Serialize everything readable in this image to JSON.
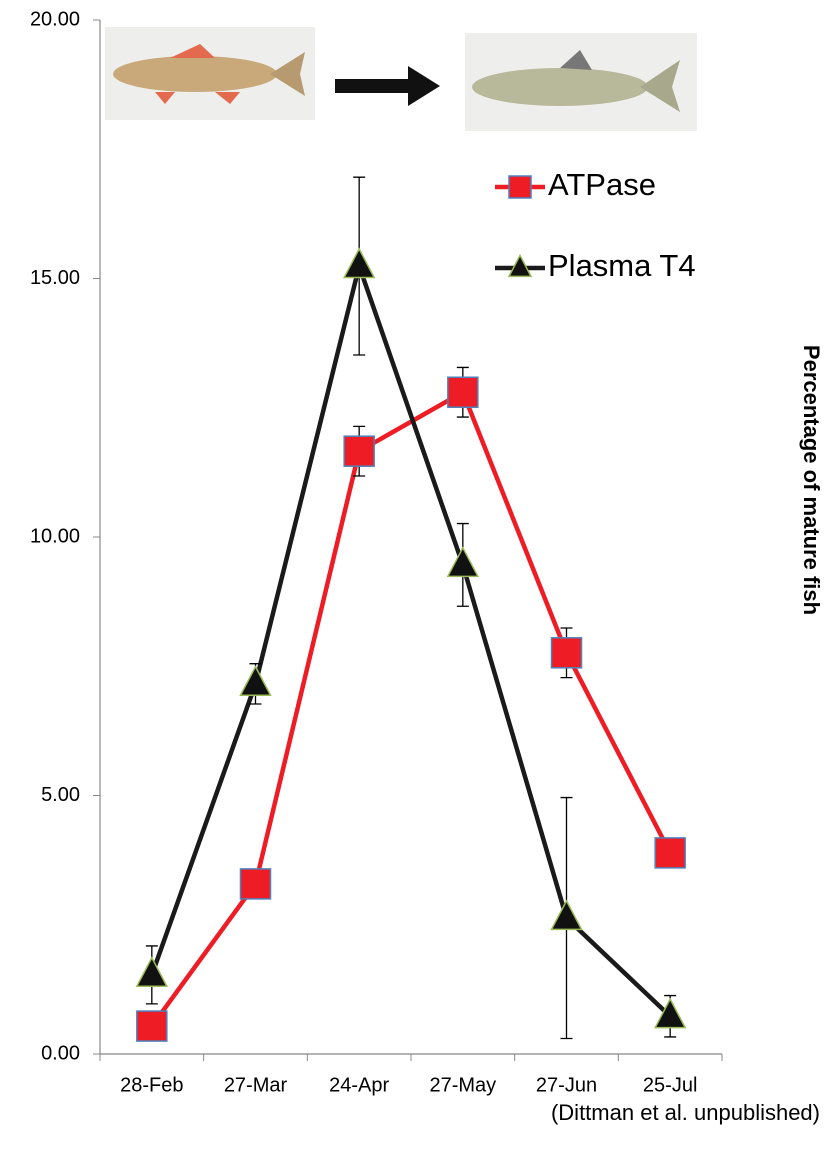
{
  "chart_data": {
    "type": "line",
    "categories": [
      "28-Feb",
      "27-Mar",
      "24-Apr",
      "27-May",
      "27-Jun",
      "25-Jul"
    ],
    "series": [
      {
        "name": "ATPase",
        "color": "#ee1c25",
        "marker": "square",
        "values": [
          0.54,
          3.29,
          11.66,
          12.8,
          7.76,
          3.89
        ],
        "errors": [
          null,
          null,
          0.48,
          0.48,
          0.48,
          null
        ]
      },
      {
        "name": "Plasma T4",
        "color": "#1a1a1a",
        "marker": "triangle",
        "values": [
          1.53,
          7.16,
          15.24,
          9.46,
          2.63,
          0.73
        ],
        "errors": [
          0.56,
          0.39,
          1.72,
          0.8,
          2.33,
          0.4
        ]
      }
    ],
    "ylim": [
      0,
      20
    ],
    "yticks": [
      {
        "value": 0,
        "label": "0.00"
      },
      {
        "value": 5,
        "label": "5.00"
      },
      {
        "value": 10,
        "label": "10.00"
      },
      {
        "value": 15,
        "label": "15.00"
      },
      {
        "value": 20,
        "label": "20.00"
      }
    ],
    "y2_label": "Percentage of mature fish",
    "source": "(Dittman et al. unpublished)"
  }
}
